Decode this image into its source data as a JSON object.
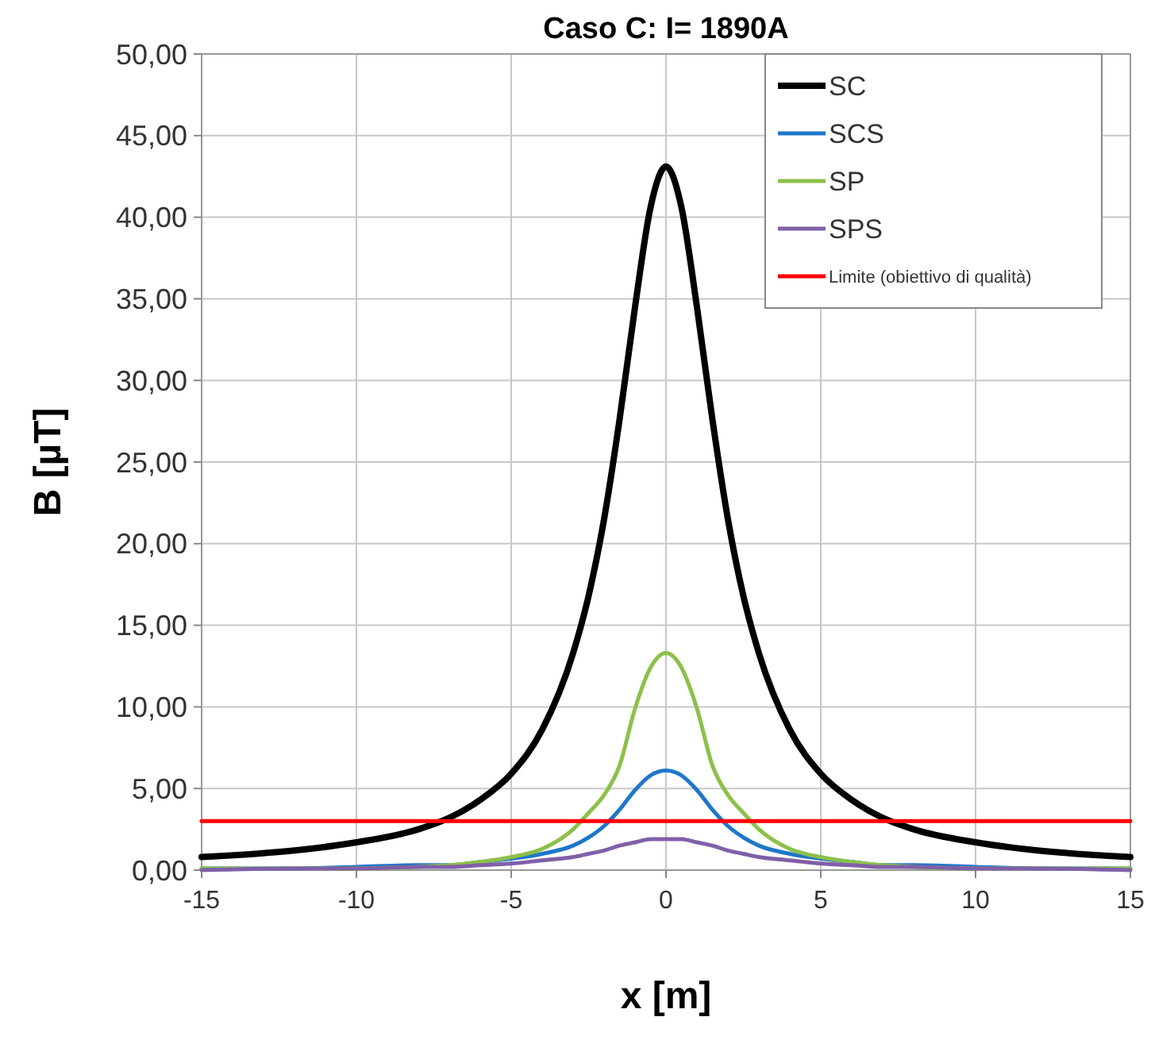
{
  "chart_data": {
    "type": "line",
    "title": "Caso C: I= 1890A",
    "xlabel": "x [m]",
    "ylabel": "B [µT]",
    "x": [
      -15,
      -12,
      -10,
      -8,
      -7,
      -6,
      -5,
      -4,
      -3,
      -2.5,
      -2,
      -1.5,
      -1,
      -0.5,
      0,
      0.5,
      1,
      1.5,
      2,
      2.5,
      3,
      4,
      5,
      6,
      7,
      8,
      10,
      12,
      15
    ],
    "series": [
      {
        "name": "SC",
        "color": "#000000",
        "values": [
          0.8,
          1.2,
          1.7,
          2.5,
          3.2,
          4.3,
          5.9,
          8.6,
          13.3,
          16.8,
          21.5,
          27.6,
          34.5,
          40.6,
          43.1,
          40.6,
          34.5,
          27.6,
          21.5,
          16.8,
          13.3,
          8.6,
          5.9,
          4.3,
          3.2,
          2.5,
          1.7,
          1.2,
          0.8
        ]
      },
      {
        "name": "SCS",
        "color": "#1f77c8",
        "values": [
          0.1,
          0.1,
          0.2,
          0.3,
          0.3,
          0.5,
          0.7,
          1.0,
          1.5,
          2.0,
          2.7,
          3.7,
          4.9,
          5.8,
          6.1,
          5.8,
          4.9,
          3.7,
          2.7,
          2.0,
          1.5,
          1.0,
          0.7,
          0.5,
          0.3,
          0.3,
          0.2,
          0.1,
          0.1
        ]
      },
      {
        "name": "SP",
        "color": "#8cc04a",
        "values": [
          0.1,
          0.1,
          0.1,
          0.2,
          0.3,
          0.5,
          0.8,
          1.3,
          2.5,
          3.5,
          4.6,
          6.4,
          9.9,
          12.4,
          13.3,
          12.4,
          9.9,
          6.4,
          4.6,
          3.5,
          2.5,
          1.3,
          0.8,
          0.5,
          0.3,
          0.2,
          0.1,
          0.1,
          0.1
        ]
      },
      {
        "name": "SPS",
        "color": "#8060a8",
        "values": [
          0.0,
          0.1,
          0.1,
          0.2,
          0.2,
          0.3,
          0.4,
          0.6,
          0.8,
          1.0,
          1.2,
          1.5,
          1.7,
          1.9,
          1.9,
          1.9,
          1.7,
          1.5,
          1.2,
          1.0,
          0.8,
          0.6,
          0.4,
          0.3,
          0.2,
          0.2,
          0.1,
          0.1,
          0.0
        ]
      },
      {
        "name": "Limite (obiettivo di qualità)",
        "color": "#ff0000",
        "x": [
          -15,
          15
        ],
        "values": [
          3,
          3
        ]
      }
    ],
    "xlim": [
      -15,
      15
    ],
    "xticks": [
      -15,
      -10,
      -5,
      0,
      5,
      10,
      15
    ],
    "ylim": [
      0,
      50
    ],
    "yticks": [
      {
        "value": 0,
        "label": "0,00"
      },
      {
        "value": 5,
        "label": "5,00"
      },
      {
        "value": 10,
        "label": "10,00"
      },
      {
        "value": 15,
        "label": "15,00"
      },
      {
        "value": 20,
        "label": "20,00"
      },
      {
        "value": 25,
        "label": "25,00"
      },
      {
        "value": 30,
        "label": "30,00"
      },
      {
        "value": 35,
        "label": "35,00"
      },
      {
        "value": 40,
        "label": "40,00"
      },
      {
        "value": 45,
        "label": "45,00"
      },
      {
        "value": 50,
        "label": "50,00"
      }
    ],
    "grid": true,
    "legend": "top right",
    "marker": "none",
    "line_style": "solid"
  }
}
